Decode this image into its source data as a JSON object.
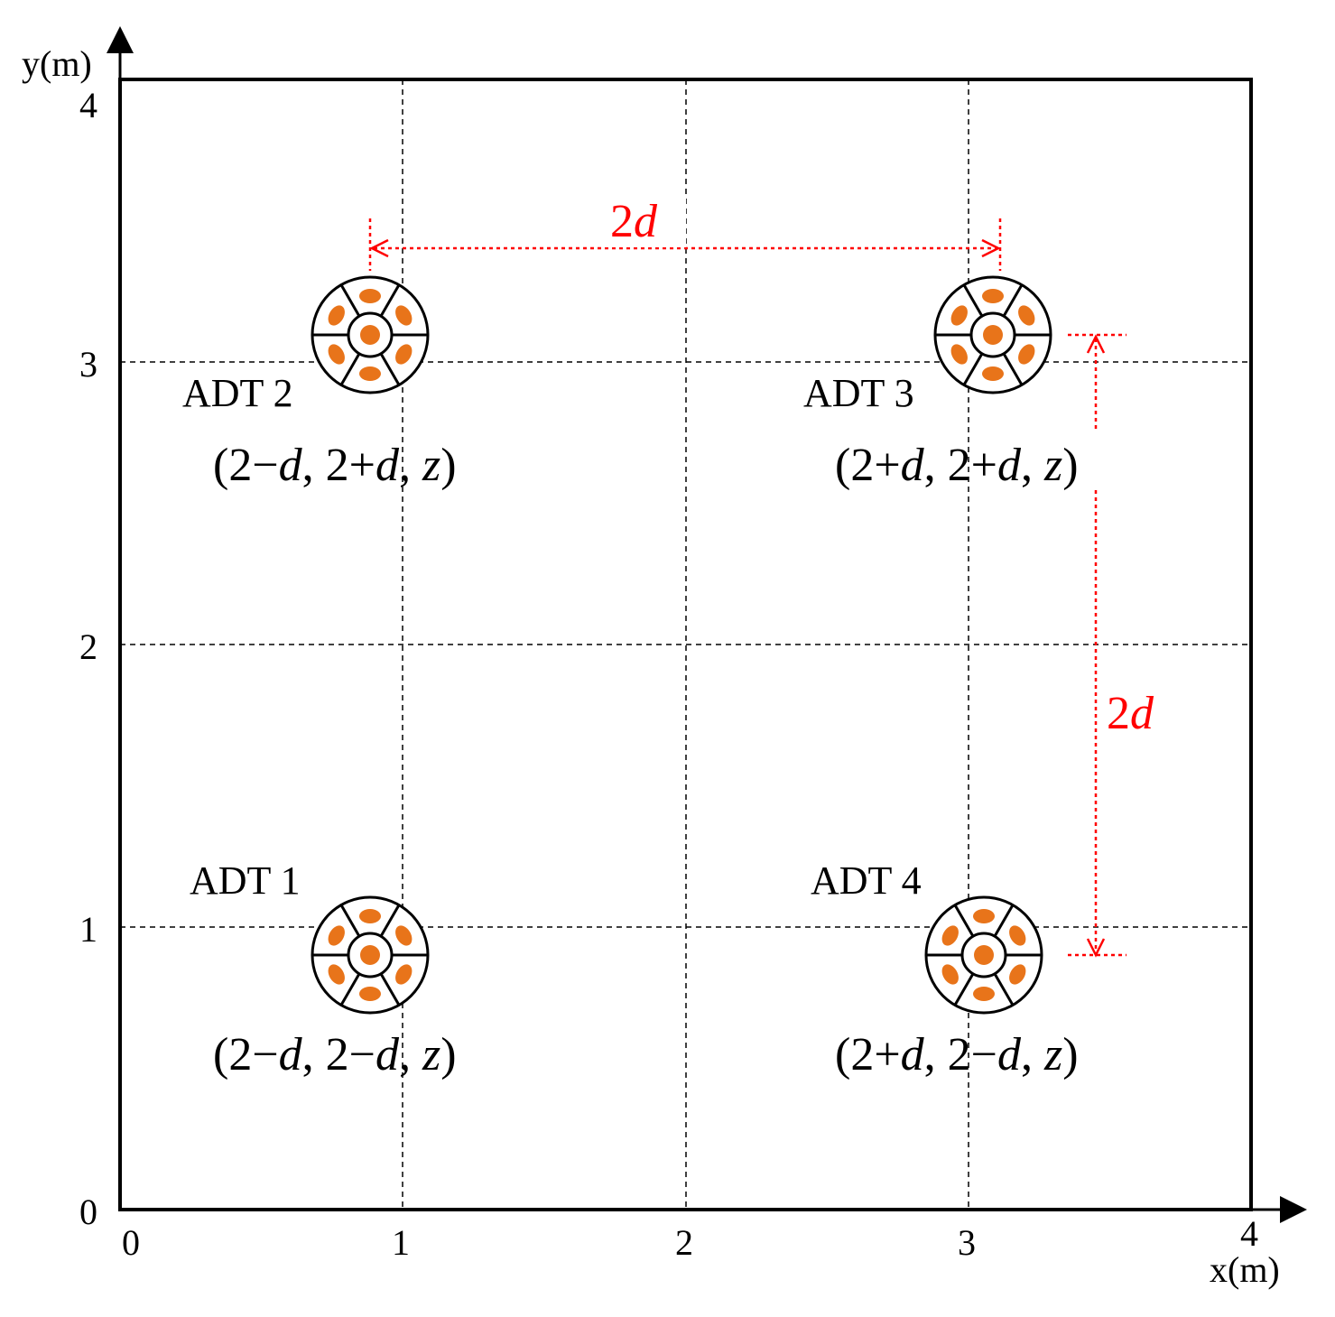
{
  "axes": {
    "x_label": "x(m)",
    "y_label": "y(m)",
    "x_ticks": [
      "0",
      "1",
      "2",
      "3",
      "4"
    ],
    "y_ticks": [
      "0",
      "1",
      "2",
      "3",
      "4"
    ]
  },
  "nodes": [
    {
      "id": "adt1",
      "name": "ADT 1",
      "coord": [
        "(2−",
        "d",
        ", 2−",
        "d",
        ", ",
        "z",
        ")"
      ]
    },
    {
      "id": "adt2",
      "name": "ADT 2",
      "coord": [
        "(2−",
        "d",
        ", 2+",
        "d",
        ", ",
        "z",
        ")"
      ]
    },
    {
      "id": "adt3",
      "name": "ADT 3",
      "coord": [
        "(2+",
        "d",
        ", 2+",
        "d",
        ", ",
        "z",
        ")"
      ]
    },
    {
      "id": "adt4",
      "name": "ADT 4",
      "coord": [
        "(2+",
        "d",
        ", 2−",
        "d",
        ", ",
        "z",
        ")"
      ]
    }
  ],
  "dimensions": {
    "horizontal_label": "2d",
    "vertical_label": "2d"
  },
  "colors": {
    "dimension": "#ff0000",
    "speaker": "#e8741a",
    "axis": "#000000",
    "grid": "#000000"
  },
  "icons": {
    "array": "circular-microphone-array-icon"
  }
}
